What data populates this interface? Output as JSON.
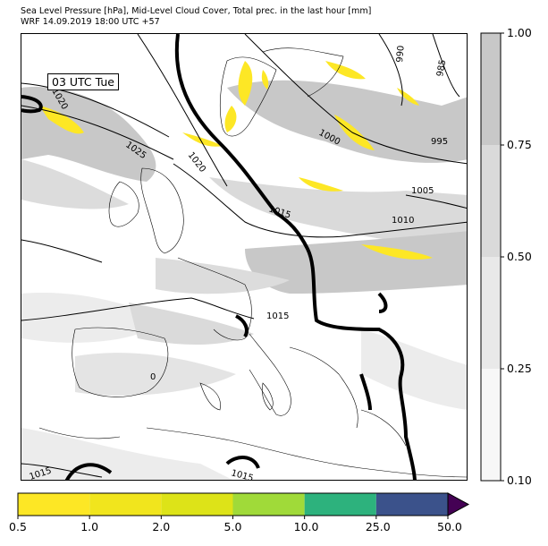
{
  "header": {
    "title_line1": "Sea Level Pressure [hPa], Mid-Level Cloud Cover, Total prec. in the last hour [mm]",
    "title_line2": "WRF 14.09.2019 18:00 UTC +57"
  },
  "map": {
    "time_label": "03 UTC Tue",
    "isobar_labels": [
      "1020",
      "1025",
      "1020",
      "1015",
      "1000",
      "995",
      "985",
      "990",
      "1005",
      "1010",
      "1015",
      "1015",
      "1015",
      "0"
    ],
    "colors": {
      "land_line": "#000000",
      "cloud_high": "#c8c8c8",
      "cloud_mid": "#dcdcdc",
      "cloud_low": "#ececec",
      "precip_yellow": "#fde725"
    }
  },
  "cloud_colorbar": {
    "ticks": [
      "0.10",
      "0.25",
      "0.50",
      "0.75",
      "1.00"
    ],
    "colors": [
      "#f7f7f7",
      "#e9e9e9",
      "#dadada",
      "#c8c8c8"
    ]
  },
  "precip_colorbar": {
    "ticks": [
      "0.5",
      "1.0",
      "2.0",
      "5.0",
      "10.0",
      "25.0",
      "50.0"
    ],
    "colors": [
      "#fde725",
      "#f1e51d",
      "#dde318",
      "#a0da39",
      "#2db27d",
      "#3b528b",
      "#440154"
    ]
  }
}
